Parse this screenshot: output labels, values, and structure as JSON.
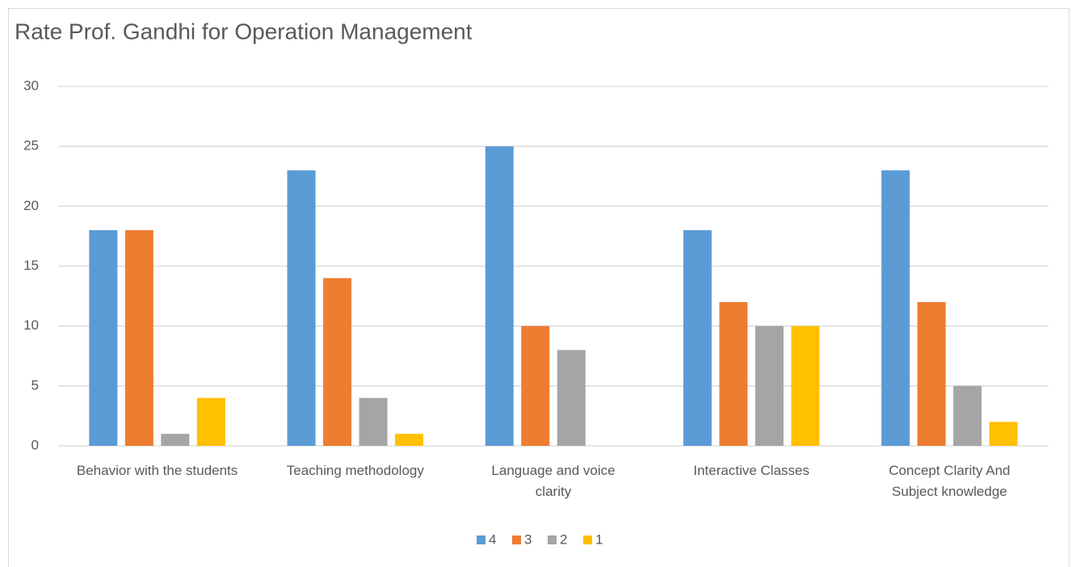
{
  "chart_data": {
    "type": "bar",
    "title": "Rate Prof. Gandhi for Operation Management",
    "categories": [
      "Behavior with the students",
      "Teaching methodology",
      "Language and voice clarity",
      "Interactive Classes",
      "Concept Clarity And Subject knowledge"
    ],
    "series": [
      {
        "name": "4",
        "color": "#5b9bd5",
        "values": [
          18,
          23,
          25,
          18,
          23
        ]
      },
      {
        "name": "3",
        "color": "#ed7d31",
        "values": [
          18,
          14,
          10,
          12,
          12
        ]
      },
      {
        "name": "2",
        "color": "#a5a5a5",
        "values": [
          1,
          4,
          8,
          10,
          5
        ]
      },
      {
        "name": "1",
        "color": "#ffc000",
        "values": [
          4,
          1,
          0,
          10,
          2
        ]
      }
    ],
    "ylim": [
      0,
      30
    ],
    "yticks": [
      0,
      5,
      10,
      15,
      20,
      25,
      30
    ],
    "grid": true,
    "legend": "bottom"
  }
}
